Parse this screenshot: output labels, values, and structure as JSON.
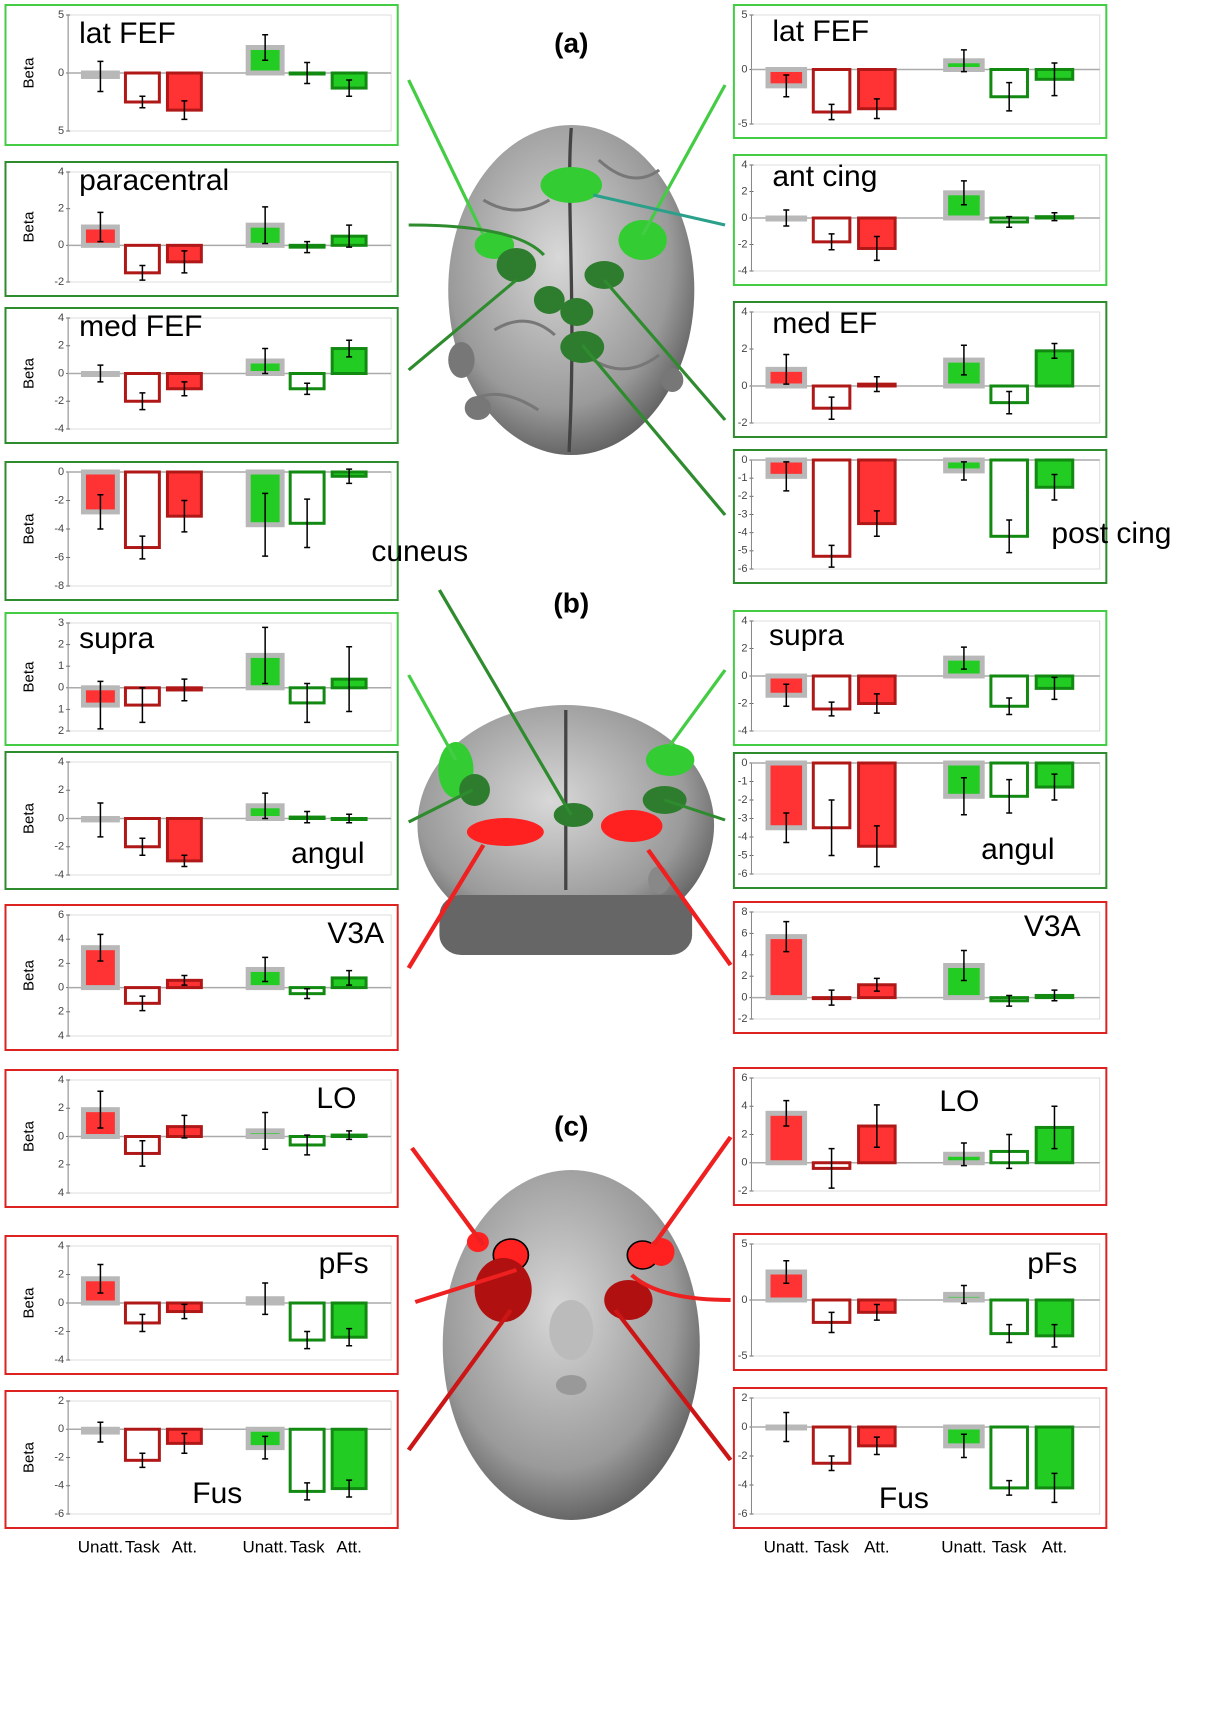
{
  "panel_labels": [
    "(a)",
    "(b)",
    "(c)"
  ],
  "condition_labels": [
    "Unatt.",
    "Task",
    "Att."
  ],
  "colors": [
    {
      "fill": "#ff3333",
      "edge": "#b01818",
      "text": "#e02020"
    },
    {
      "fill": "#22cc22",
      "edge": "#128a12",
      "text": "#22a022"
    }
  ],
  "unattended_edge": "#b8b8b8",
  "chart_data": [
    {
      "type": "bar",
      "title": "lat FEF",
      "ylabel": "Beta",
      "border": "#44cc44",
      "ylim": [
        -5,
        5
      ],
      "yticks": [
        5,
        0,
        {
          "value": -5,
          "label": "5"
        }
      ],
      "values": [
        -0.3,
        -2.5,
        -3.2,
        2.2,
        0.0,
        -1.3
      ],
      "errors": [
        1.3,
        0.5,
        0.8,
        1.1,
        0.9,
        0.7
      ]
    },
    {
      "type": "bar",
      "title": "lat FEF",
      "border": "#44cc44",
      "ylim": [
        -5,
        5
      ],
      "yticks": [
        5,
        0,
        -5
      ],
      "values": [
        -1.5,
        -3.9,
        -3.6,
        0.8,
        -2.5,
        -0.9
      ],
      "errors": [
        1.0,
        0.7,
        0.9,
        1.0,
        1.3,
        1.5
      ]
    },
    {
      "type": "bar",
      "title": "paracentral",
      "ylabel": "Beta",
      "border": "#2e8b2e",
      "ylim": [
        -2,
        4
      ],
      "yticks": [
        4,
        2,
        0,
        -2
      ],
      "values": [
        1.0,
        -1.5,
        -0.9,
        1.1,
        -0.1,
        0.5
      ],
      "errors": [
        0.8,
        0.4,
        0.6,
        1.0,
        0.3,
        0.6
      ]
    },
    {
      "type": "bar",
      "title": "ant cing",
      "border": "#44cc44",
      "ylim": [
        -4,
        4
      ],
      "yticks": [
        4,
        2,
        0,
        -2,
        -4
      ],
      "values": [
        0.0,
        -1.8,
        -2.3,
        1.9,
        -0.3,
        0.1
      ],
      "errors": [
        0.6,
        0.6,
        0.9,
        0.9,
        0.4,
        0.3
      ]
    },
    {
      "type": "bar",
      "title": "med FEF",
      "ylabel": "Beta",
      "border": "#2e8b2e",
      "ylim": [
        -4,
        4
      ],
      "yticks": [
        4,
        2,
        0,
        -2,
        -4
      ],
      "values": [
        0.0,
        -2.0,
        -1.1,
        0.9,
        -1.1,
        1.8
      ],
      "errors": [
        0.6,
        0.6,
        0.5,
        0.9,
        0.4,
        0.6
      ]
    },
    {
      "type": "bar",
      "title": "med EF",
      "border": "#2e8b2e",
      "ylim": [
        -2,
        4
      ],
      "yticks": [
        4,
        2,
        0,
        -2
      ],
      "values": [
        0.9,
        -1.2,
        0.1,
        1.4,
        -0.9,
        1.9
      ],
      "errors": [
        0.8,
        0.6,
        0.4,
        0.8,
        0.6,
        0.4
      ]
    },
    {
      "type": "bar",
      "title": "cuneus",
      "ylabel": "Beta",
      "border": "#2e8b2e",
      "ylim": [
        -8,
        0
      ],
      "yticks": [
        0,
        -2,
        -4,
        -6,
        -8
      ],
      "values": [
        -2.8,
        -5.3,
        -3.1,
        -3.7,
        -3.6,
        -0.3
      ],
      "errors": [
        1.2,
        0.8,
        1.1,
        2.2,
        1.7,
        0.5
      ]
    },
    {
      "type": "bar",
      "title": "post cing",
      "border": "#2e8b2e",
      "ylim": [
        -6,
        0
      ],
      "yticks": [
        0,
        -1,
        -2,
        -3,
        -4,
        -5,
        -6
      ],
      "values": [
        -0.9,
        -5.3,
        -3.5,
        -0.6,
        -4.2,
        -1.5
      ],
      "errors": [
        0.8,
        0.6,
        0.7,
        0.5,
        0.9,
        0.7
      ]
    },
    {
      "type": "bar",
      "title": "supra",
      "ylabel": "Beta",
      "border": "#44cc44",
      "ylim": [
        -2,
        3
      ],
      "yticks": [
        3,
        2,
        1,
        0,
        {
          "value": -1,
          "label": "1"
        },
        {
          "value": -2,
          "label": "2"
        }
      ],
      "values": [
        -0.8,
        -0.8,
        -0.1,
        1.5,
        -0.7,
        0.4
      ],
      "errors": [
        1.1,
        0.8,
        0.5,
        1.3,
        0.9,
        1.5
      ]
    },
    {
      "type": "bar",
      "title": "supra",
      "border": "#44cc44",
      "ylim": [
        -4,
        4
      ],
      "yticks": [
        4,
        2,
        0,
        -2,
        -4
      ],
      "values": [
        -1.4,
        -2.4,
        -2.0,
        1.3,
        -2.2,
        -0.9
      ],
      "errors": [
        0.8,
        0.5,
        0.7,
        0.8,
        0.6,
        0.8
      ]
    },
    {
      "type": "bar",
      "title": "angul",
      "ylabel": "Beta",
      "border": "#2e8b2e",
      "ylim": [
        -4,
        4
      ],
      "yticks": [
        4,
        2,
        0,
        -2,
        -4
      ],
      "values": [
        -0.1,
        -2.0,
        -3.0,
        0.9,
        0.1,
        0.0
      ],
      "errors": [
        1.2,
        0.6,
        0.4,
        0.9,
        0.4,
        0.3
      ]
    },
    {
      "type": "bar",
      "title": "angul",
      "border": "#2e8b2e",
      "ylim": [
        -6,
        0
      ],
      "yticks": [
        0,
        -1,
        -2,
        -3,
        -4,
        -5,
        -6
      ],
      "values": [
        -3.5,
        -3.5,
        -4.5,
        -1.8,
        -1.8,
        -1.3
      ],
      "errors": [
        0.8,
        1.5,
        1.1,
        1.0,
        0.9,
        0.7
      ]
    },
    {
      "type": "bar",
      "title": "V3A",
      "ylabel": "Beta",
      "border": "#dd2222",
      "ylim": [
        -4,
        6
      ],
      "yticks": [
        6,
        4,
        2,
        0,
        {
          "value": -2,
          "label": "2"
        },
        {
          "value": -4,
          "label": "4"
        }
      ],
      "values": [
        3.3,
        -1.3,
        0.6,
        1.5,
        -0.5,
        0.8
      ],
      "errors": [
        1.1,
        0.6,
        0.4,
        1.0,
        0.4,
        0.6
      ]
    },
    {
      "type": "bar",
      "title": "V3A",
      "border": "#dd2222",
      "ylim": [
        -2,
        8
      ],
      "yticks": [
        8,
        6,
        4,
        2,
        0,
        -2
      ],
      "values": [
        5.7,
        0.0,
        1.2,
        3.0,
        -0.3,
        0.2
      ],
      "errors": [
        1.4,
        0.7,
        0.6,
        1.4,
        0.5,
        0.5
      ]
    },
    {
      "type": "bar",
      "title": "LO",
      "ylabel": "Beta",
      "border": "#dd2222",
      "ylim": [
        -4,
        4
      ],
      "yticks": [
        4,
        2,
        0,
        {
          "value": -2,
          "label": "2"
        },
        {
          "value": -4,
          "label": "4"
        }
      ],
      "values": [
        1.9,
        -1.2,
        0.7,
        0.4,
        -0.6,
        0.1
      ],
      "errors": [
        1.3,
        0.9,
        0.8,
        1.3,
        0.7,
        0.3
      ]
    },
    {
      "type": "bar",
      "title": "LO",
      "border": "#dd2222",
      "ylim": [
        -2,
        6
      ],
      "yticks": [
        6,
        4,
        2,
        0,
        -2
      ],
      "values": [
        3.5,
        -0.4,
        2.6,
        0.6,
        0.8,
        2.5
      ],
      "errors": [
        0.9,
        1.4,
        1.5,
        0.8,
        1.2,
        1.5
      ]
    },
    {
      "type": "bar",
      "title": "pFs",
      "ylabel": "Beta",
      "border": "#dd2222",
      "ylim": [
        -4,
        4
      ],
      "yticks": [
        4,
        2,
        0,
        -2,
        -4
      ],
      "values": [
        1.7,
        -1.4,
        -0.6,
        0.3,
        -2.6,
        -2.4
      ],
      "errors": [
        1.0,
        0.6,
        0.5,
        1.1,
        0.6,
        0.6
      ]
    },
    {
      "type": "bar",
      "title": "pFs",
      "border": "#dd2222",
      "ylim": [
        -5,
        5
      ],
      "yticks": [
        5,
        0,
        -5
      ],
      "values": [
        2.5,
        -2.0,
        -1.1,
        0.5,
        -3.0,
        -3.2
      ],
      "errors": [
        1.0,
        0.9,
        0.7,
        0.8,
        0.8,
        1.0
      ]
    },
    {
      "type": "bar",
      "title": "Fus",
      "ylabel": "Beta",
      "border": "#dd2222",
      "ylim": [
        -6,
        2
      ],
      "yticks": [
        2,
        0,
        -2,
        -4,
        -6
      ],
      "values": [
        -0.2,
        -2.2,
        -1.0,
        -1.3,
        -4.4,
        -4.2
      ],
      "errors": [
        0.7,
        0.5,
        0.7,
        0.8,
        0.6,
        0.6
      ]
    },
    {
      "type": "bar",
      "title": "Fus",
      "border": "#dd2222",
      "ylim": [
        -6,
        2
      ],
      "yticks": [
        2,
        0,
        -2,
        -4,
        -6
      ],
      "values": [
        0.0,
        -2.5,
        -1.3,
        -1.3,
        -4.2,
        -4.2
      ],
      "errors": [
        1.0,
        0.5,
        0.6,
        0.8,
        0.5,
        1.0
      ]
    }
  ]
}
